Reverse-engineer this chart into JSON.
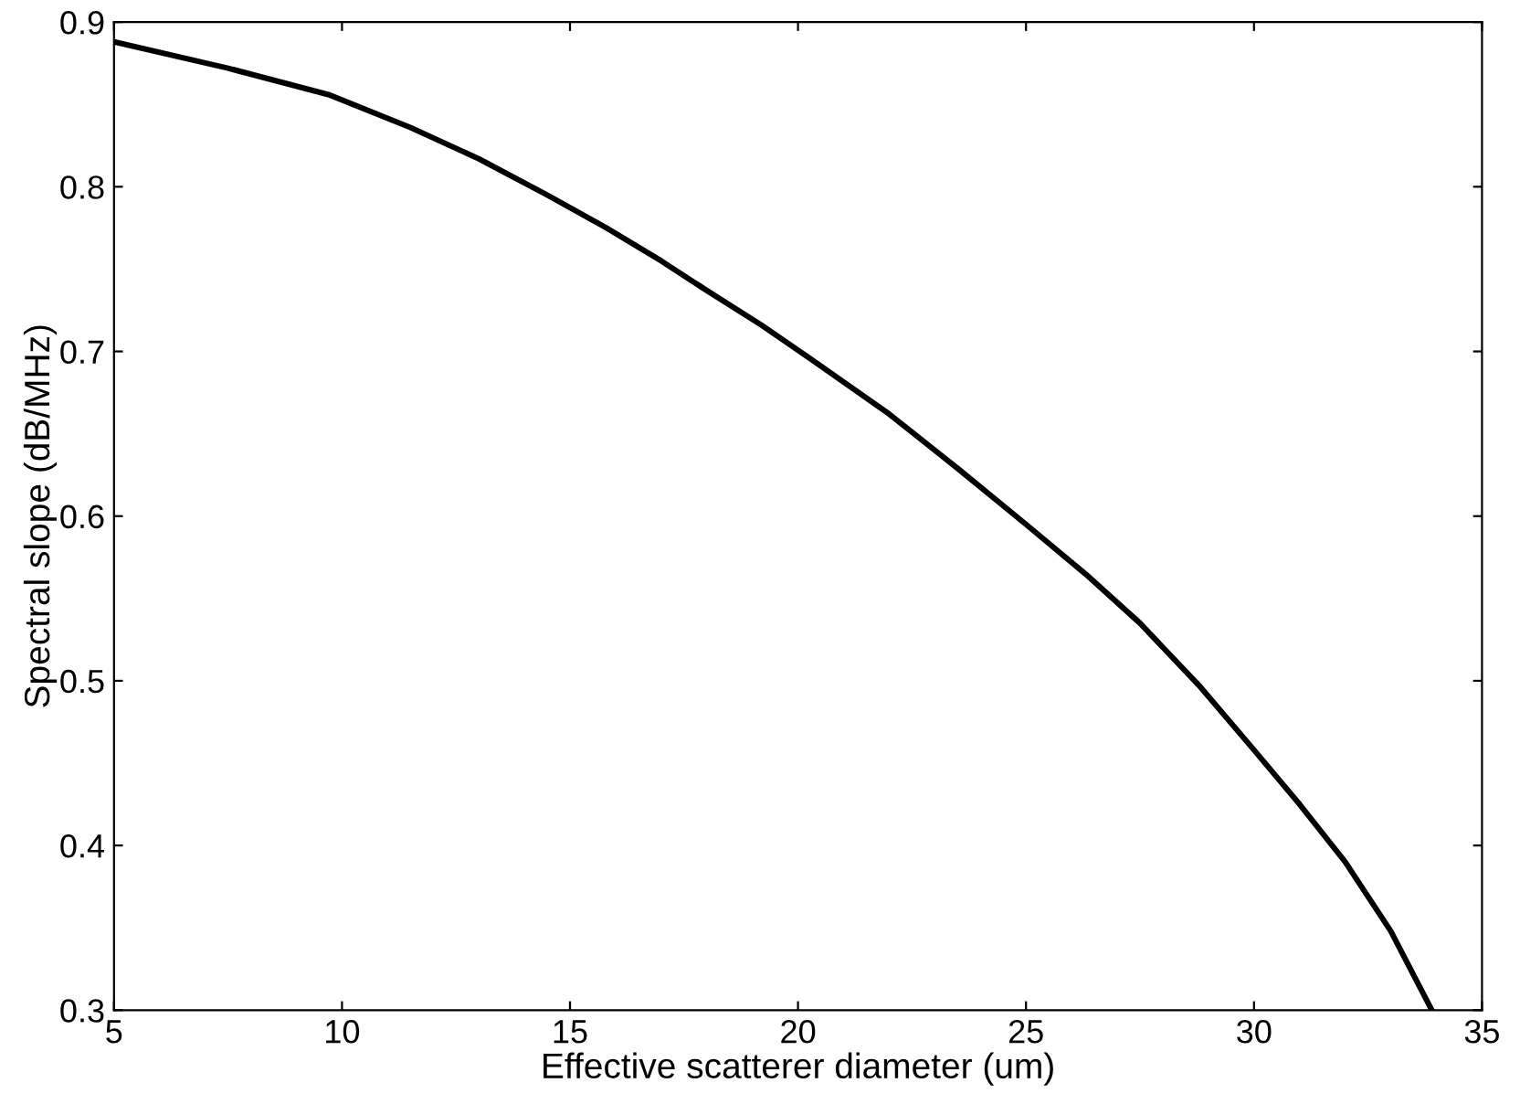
{
  "chart_data": {
    "type": "line",
    "xlabel": "Effective scatterer diameter (um)",
    "ylabel": "Spectral slope (dB/MHz)",
    "series": [
      {
        "color": "#000000",
        "x": [
          5,
          7.5,
          9.7,
          11.5,
          13,
          14.5,
          15.8,
          17,
          18,
          19.2,
          20.3,
          22,
          23.5,
          25,
          26.3,
          27.5,
          28.8,
          30,
          31,
          32,
          33,
          33.9
        ],
        "values": [
          0.888,
          0.872,
          0.856,
          0.836,
          0.817,
          0.795,
          0.775,
          0.755,
          0.737,
          0.716,
          0.695,
          0.662,
          0.629,
          0.595,
          0.565,
          0.535,
          0.497,
          0.458,
          0.425,
          0.39,
          0.348,
          0.3
        ]
      }
    ],
    "xlim": [
      5,
      35
    ],
    "xticks": [
      5,
      10,
      15,
      20,
      25,
      30,
      35
    ],
    "ylim": [
      0.3,
      0.9
    ],
    "yticks": [
      0.3,
      0.4,
      0.5,
      0.6,
      0.7,
      0.8,
      0.9
    ],
    "grid": false,
    "legend": false,
    "line_style": "solid",
    "marker": "none"
  }
}
